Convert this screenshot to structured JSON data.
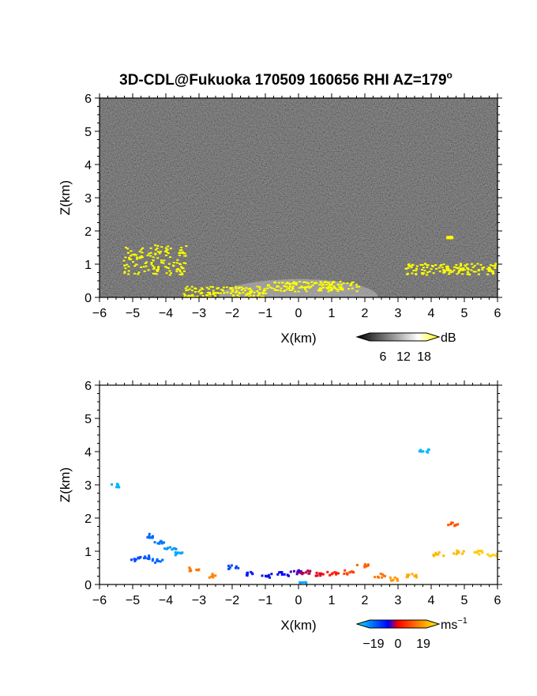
{
  "title": "3D-CDL@Fukuoka 170509 160656 RHI AZ=179",
  "title_superscript": "o",
  "chart_data": [
    {
      "type": "heatmap",
      "xlabel": "X(km)",
      "ylabel": "Z(km)",
      "xlim": [
        -6,
        6
      ],
      "ylim": [
        0,
        6
      ],
      "xticks": [
        "-6",
        "-5",
        "-4",
        "-3",
        "-2",
        "-1",
        "0",
        "1",
        "2",
        "3",
        "4",
        "5",
        "6"
      ],
      "yticks": [
        "0",
        "1",
        "2",
        "3",
        "4",
        "5",
        "6"
      ],
      "background": "grayscale noise",
      "colorbar": {
        "unit": "dB",
        "ticks": [
          "6",
          "12",
          "18"
        ],
        "range": [
          0,
          20
        ],
        "colors": [
          "#000000",
          "#ffffff",
          "#ffff00"
        ]
      },
      "features": [
        {
          "name": "low-level echo",
          "x": [
            -1.0,
            1.8
          ],
          "z": [
            0.2,
            0.5
          ],
          "level": 20
        },
        {
          "name": "near-ground band",
          "x": [
            -3.5,
            -1.0
          ],
          "z": [
            0.0,
            0.35
          ],
          "level": 20
        },
        {
          "name": "left elevated layer",
          "x": [
            -5.3,
            -3.4
          ],
          "z": [
            0.7,
            1.6
          ],
          "level": 20
        },
        {
          "name": "right elevated layer",
          "x": [
            3.2,
            6.0
          ],
          "z": [
            0.7,
            1.05
          ],
          "level": 20
        },
        {
          "name": "small patch",
          "x": [
            4.45,
            4.6
          ],
          "z": [
            1.8,
            1.85
          ],
          "level": 20
        }
      ]
    },
    {
      "type": "scatter",
      "xlabel": "X(km)",
      "ylabel": "Z(km)",
      "xlim": [
        -6,
        6
      ],
      "ylim": [
        0,
        6
      ],
      "xticks": [
        "-6",
        "-5",
        "-4",
        "-3",
        "-2",
        "-1",
        "0",
        "1",
        "2",
        "3",
        "4",
        "5",
        "6"
      ],
      "yticks": [
        "0",
        "1",
        "2",
        "3",
        "4",
        "5",
        "6"
      ],
      "colorbar": {
        "unit": "ms",
        "unit_superscript": "−1",
        "tick_labels": [
          "−19",
          "0",
          "19"
        ],
        "ticks": [
          -19,
          0,
          19
        ],
        "range": [
          -22,
          22
        ],
        "colors": [
          "#00e5ff",
          "#0000ff",
          "#ff0000",
          "#ffff00"
        ]
      },
      "points": [
        {
          "x": -5.55,
          "z": 3.0,
          "v": -19
        },
        {
          "x": 3.75,
          "z": 4.05,
          "v": -19
        },
        {
          "x": 4.6,
          "z": 1.85,
          "v": 12
        },
        {
          "x": -4.5,
          "z": 1.5,
          "v": -14
        },
        {
          "x": -4.2,
          "z": 1.3,
          "v": -15
        },
        {
          "x": -3.9,
          "z": 1.1,
          "v": -17
        },
        {
          "x": -3.6,
          "z": 0.95,
          "v": -18
        },
        {
          "x": -4.9,
          "z": 0.8,
          "v": -12
        },
        {
          "x": -4.6,
          "z": 0.85,
          "v": -13
        },
        {
          "x": -4.3,
          "z": 0.75,
          "v": -14
        },
        {
          "x": -2.0,
          "z": 0.55,
          "v": -12
        },
        {
          "x": -1.5,
          "z": 0.35,
          "v": -9
        },
        {
          "x": -1.0,
          "z": 0.3,
          "v": -8
        },
        {
          "x": -0.5,
          "z": 0.35,
          "v": -7
        },
        {
          "x": -0.1,
          "z": 0.4,
          "v": -3
        },
        {
          "x": 0.1,
          "z": 0.05,
          "v": -18
        },
        {
          "x": 0.2,
          "z": 0.4,
          "v": 3
        },
        {
          "x": 0.6,
          "z": 0.35,
          "v": 6
        },
        {
          "x": 1.0,
          "z": 0.35,
          "v": 9
        },
        {
          "x": 1.5,
          "z": 0.4,
          "v": 11
        },
        {
          "x": 1.9,
          "z": 0.6,
          "v": 13
        },
        {
          "x": 2.4,
          "z": 0.3,
          "v": 14
        },
        {
          "x": 2.9,
          "z": 0.2,
          "v": 16
        },
        {
          "x": 3.4,
          "z": 0.3,
          "v": 17
        },
        {
          "x": 4.2,
          "z": 0.95,
          "v": 18
        },
        {
          "x": 4.8,
          "z": 1.0,
          "v": 18
        },
        {
          "x": 5.4,
          "z": 1.0,
          "v": 19
        },
        {
          "x": 5.8,
          "z": 0.9,
          "v": 19
        },
        {
          "x": -3.2,
          "z": 0.5,
          "v": 14
        },
        {
          "x": -2.7,
          "z": 0.3,
          "v": 15
        }
      ]
    }
  ]
}
